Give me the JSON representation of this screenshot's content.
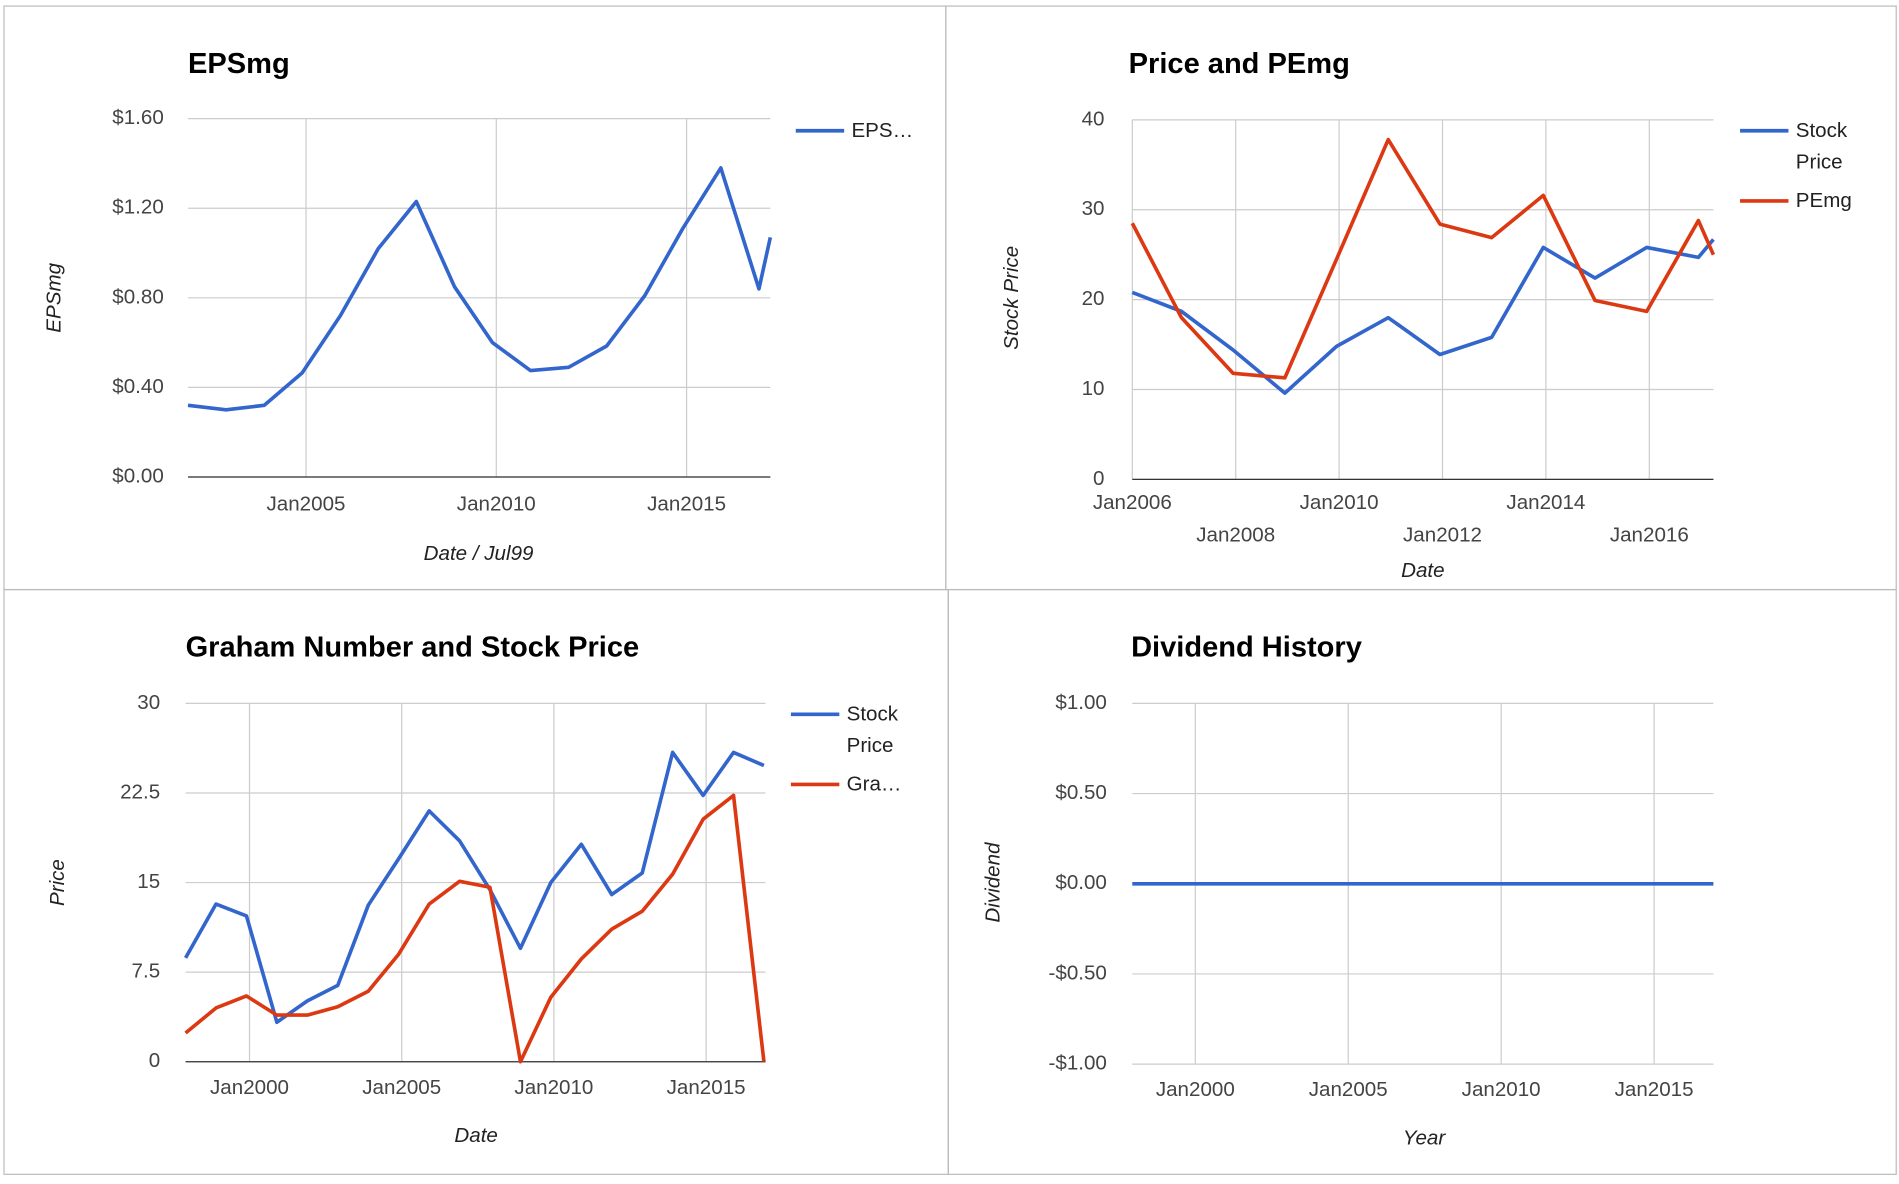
{
  "chart_data": [
    {
      "type": "line",
      "title": "EPSmg",
      "x_label": "Date / Jul99",
      "y_label": "EPSmg",
      "grid": true,
      "x": [
        2001.9,
        2002.9,
        2003.9,
        2004.9,
        2005.9,
        2006.9,
        2007.9,
        2008.9,
        2009.9,
        2010.9,
        2011.9,
        2012.9,
        2013.9,
        2014.9,
        2015.9,
        2016.9,
        2017.2
      ],
      "xlim": [
        2001.9,
        2017.2
      ],
      "xticks": [
        {
          "value": 2005,
          "label": "Jan2005"
        },
        {
          "value": 2010,
          "label": "Jan2010"
        },
        {
          "value": 2015,
          "label": "Jan2015"
        }
      ],
      "ylim": [
        0,
        1.6
      ],
      "yticks": [
        {
          "value": 0,
          "label": "$0.00"
        },
        {
          "value": 0.4,
          "label": "$0.40"
        },
        {
          "value": 0.8,
          "label": "$0.80"
        },
        {
          "value": 1.2,
          "label": "$1.20"
        },
        {
          "value": 1.6,
          "label": "$1.60"
        }
      ],
      "series": [
        {
          "name": "EPS…",
          "color": "#3366cc",
          "values": [
            0.32,
            0.3,
            0.32,
            0.465,
            0.72,
            1.02,
            1.23,
            0.85,
            0.6,
            0.475,
            0.49,
            0.585,
            0.81,
            1.11,
            1.38,
            0.84,
            1.07
          ]
        }
      ]
    },
    {
      "type": "line",
      "title": "Price and PEmg",
      "x_label": "Date",
      "y_label": "Stock Price",
      "grid": true,
      "x": [
        2006,
        2006.95,
        2007.95,
        2008.95,
        2009.95,
        2010.95,
        2011.95,
        2012.95,
        2013.95,
        2014.95,
        2015.95,
        2016.95,
        2017.24
      ],
      "xlim": [
        2006,
        2017.24
      ],
      "xticks": [
        {
          "value": 2006,
          "label": "Jan2006"
        },
        {
          "value": 2008,
          "label": "Jan2008"
        },
        {
          "value": 2010,
          "label": "Jan2010"
        },
        {
          "value": 2012,
          "label": "Jan2012"
        },
        {
          "value": 2014,
          "label": "Jan2014"
        },
        {
          "value": 2016,
          "label": "Jan2016"
        }
      ],
      "ylim": [
        0,
        40
      ],
      "yticks": [
        0,
        10,
        20,
        30,
        40
      ],
      "series": [
        {
          "name": "Stock Price",
          "color": "#3366cc",
          "values": [
            20.8,
            18.7,
            14.4,
            9.6,
            14.8,
            18,
            13.9,
            15.8,
            25.8,
            22.4,
            25.8,
            24.7,
            26.7
          ]
        },
        {
          "name": "PEmg",
          "color": "#dc3912",
          "values": [
            28.5,
            18,
            11.8,
            11.3,
            24.5,
            37.8,
            28.4,
            26.9,
            31.6,
            19.9,
            18.7,
            28.8,
            25
          ]
        }
      ]
    },
    {
      "type": "line",
      "title": "Graham Number and Stock Price",
      "x_label": "Date",
      "y_label": "Price",
      "grid": true,
      "x": [
        1997.9,
        1998.9,
        1999.9,
        2000.9,
        2001.9,
        2002.9,
        2003.9,
        2004.9,
        2005.9,
        2006.9,
        2007.9,
        2008.9,
        2009.9,
        2010.9,
        2011.9,
        2012.9,
        2013.9,
        2014.9,
        2015.9,
        2016.9
      ],
      "xlim": [
        1997.9,
        2016.95
      ],
      "xticks": [
        {
          "value": 2000,
          "label": "Jan2000"
        },
        {
          "value": 2005,
          "label": "Jan2005"
        },
        {
          "value": 2010,
          "label": "Jan2010"
        },
        {
          "value": 2015,
          "label": "Jan2015"
        }
      ],
      "ylim": [
        0,
        30
      ],
      "yticks": [
        0,
        7.5,
        15,
        22.5,
        30
      ],
      "series": [
        {
          "name": "Stock Price",
          "color": "#3366cc",
          "values": [
            8.7,
            13.2,
            12.2,
            3.3,
            5.1,
            6.4,
            13.1,
            17,
            21,
            18.5,
            14.4,
            9.5,
            15,
            18.2,
            14,
            15.8,
            25.9,
            22.3,
            25.9,
            24.8
          ]
        },
        {
          "name": "Gra…",
          "color": "#dc3912",
          "values": [
            2.4,
            4.5,
            5.5,
            3.9,
            3.9,
            4.6,
            5.9,
            9,
            13.2,
            15.1,
            14.6,
            0,
            5.4,
            8.6,
            11.1,
            12.6,
            15.7,
            20.3,
            22.3,
            0
          ]
        }
      ]
    },
    {
      "type": "line",
      "title": "Dividend History",
      "x_label": "Year",
      "y_label": "Dividend",
      "grid": true,
      "x": [
        1997.94,
        1998.94,
        1999.94,
        2000.94,
        2001.94,
        2002.94,
        2003.94,
        2004.94,
        2005.94,
        2006.94,
        2007.94,
        2008.94,
        2009.94,
        2010.94,
        2011.94,
        2012.94,
        2013.94,
        2014.94,
        2015.94,
        2016.94
      ],
      "xlim": [
        1997.94,
        2016.94
      ],
      "xticks": [
        {
          "value": 2000,
          "label": "Jan2000"
        },
        {
          "value": 2005,
          "label": "Jan2005"
        },
        {
          "value": 2010,
          "label": "Jan2010"
        },
        {
          "value": 2015,
          "label": "Jan2015"
        }
      ],
      "ylim": [
        -1,
        1
      ],
      "yticks": [
        {
          "value": -1,
          "label": "-$1.00"
        },
        {
          "value": -0.5,
          "label": "-$0.50"
        },
        {
          "value": 0,
          "label": "$0.00"
        },
        {
          "value": 0.5,
          "label": "$0.50"
        },
        {
          "value": 1,
          "label": "$1.00"
        }
      ],
      "series": [
        {
          "color": "#3366cc",
          "values": [
            0,
            0,
            0,
            0,
            0,
            0,
            0,
            0,
            0,
            0,
            0,
            0,
            0,
            0,
            0,
            0,
            0,
            0,
            0,
            0
          ]
        }
      ]
    }
  ]
}
